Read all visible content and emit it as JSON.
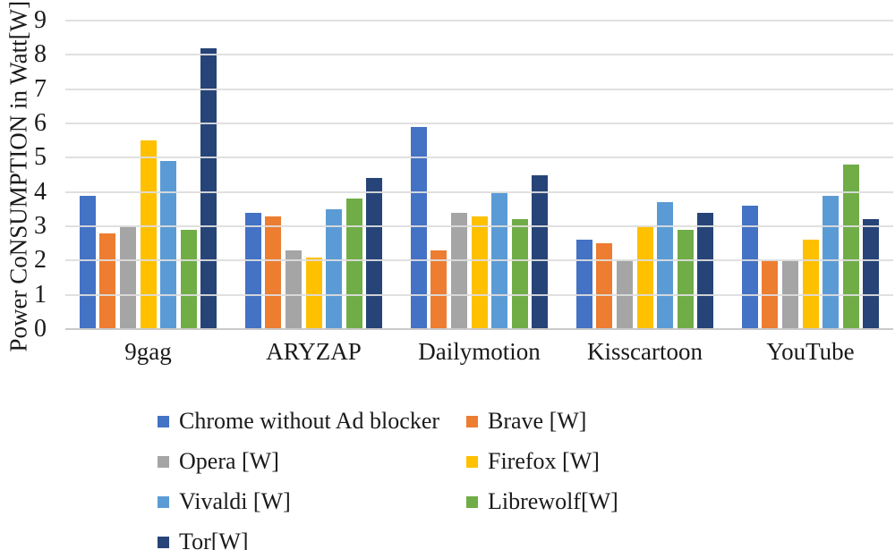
{
  "chart_data": {
    "type": "bar",
    "title": "",
    "xlabel": "",
    "ylabel": "Power CoNSUMPTION in Watt[W]",
    "ylim": [
      0,
      9
    ],
    "yticks": [
      0,
      1,
      2,
      3,
      4,
      5,
      6,
      7,
      8,
      9
    ],
    "grid": true,
    "gridlines_over_bars": true,
    "legend_position": "bottom",
    "legend_columns": 2,
    "categories": [
      "9gag",
      "ARYZAP",
      "Dailymotion",
      "Kisscartoon",
      "YouTube"
    ],
    "series": [
      {
        "name": "Chrome without Ad blocker",
        "color": "#4472C4",
        "values": [
          3.9,
          3.4,
          5.9,
          2.6,
          3.6
        ]
      },
      {
        "name": "Brave [W]",
        "color": "#ED7D31",
        "values": [
          2.8,
          3.3,
          2.3,
          2.5,
          2.0
        ]
      },
      {
        "name": "Opera [W]",
        "color": "#A5A5A5",
        "values": [
          3.0,
          2.3,
          3.4,
          2.0,
          2.0
        ]
      },
      {
        "name": "Firefox [W]",
        "color": "#FFC000",
        "values": [
          5.5,
          2.1,
          3.3,
          3.0,
          2.6
        ]
      },
      {
        "name": "Vivaldi [W]",
        "color": "#5B9BD5",
        "values": [
          4.9,
          3.5,
          4.0,
          3.7,
          3.9
        ]
      },
      {
        "name": "Librewolf[W]",
        "color": "#70AD47",
        "values": [
          2.9,
          3.8,
          3.2,
          2.9,
          4.8
        ]
      },
      {
        "name": "Tor[W]",
        "color": "#264478",
        "values": [
          8.2,
          4.4,
          4.5,
          3.4,
          3.2
        ]
      }
    ],
    "colors": {
      "gridline": "#DDDDDD",
      "axis_line": "#C9C9C9",
      "text": "#1a1a1a",
      "background": "#FFFFFF"
    }
  }
}
